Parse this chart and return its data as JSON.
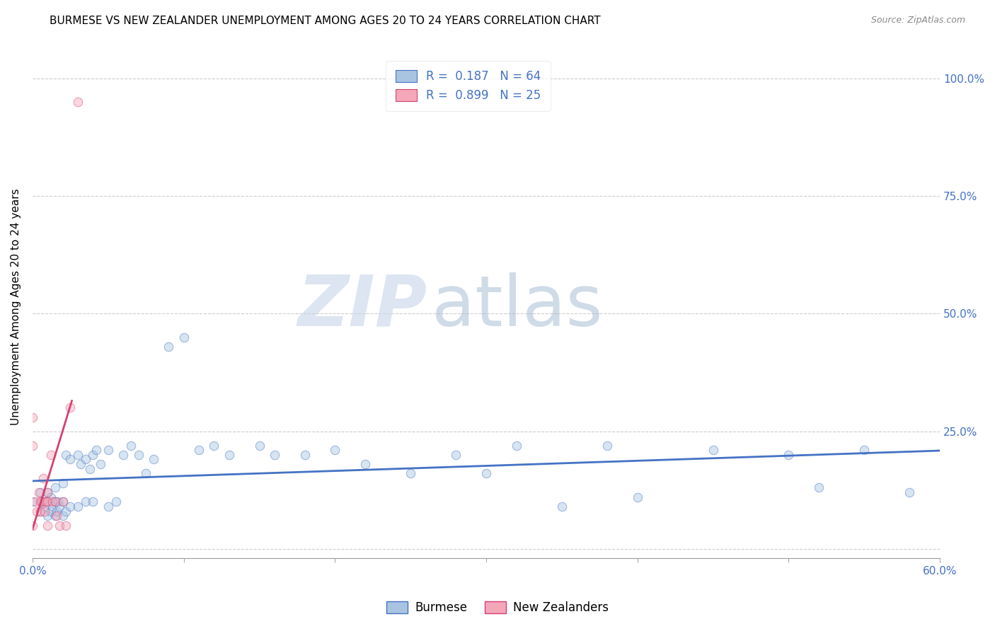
{
  "title": "BURMESE VS NEW ZEALANDER UNEMPLOYMENT AMONG AGES 20 TO 24 YEARS CORRELATION CHART",
  "source": "Source: ZipAtlas.com",
  "ylabel": "Unemployment Among Ages 20 to 24 years",
  "xlim": [
    0.0,
    0.6
  ],
  "ylim": [
    -0.02,
    1.05
  ],
  "xticks": [
    0.0,
    0.1,
    0.2,
    0.3,
    0.4,
    0.5,
    0.6
  ],
  "xticklabels": [
    "0.0%",
    "",
    "",
    "",
    "",
    "",
    "60.0%"
  ],
  "yticks": [
    0.0,
    0.25,
    0.5,
    0.75,
    1.0
  ],
  "yticklabels": [
    "",
    "25.0%",
    "50.0%",
    "75.0%",
    "100.0%"
  ],
  "blue_R": 0.187,
  "blue_N": 64,
  "pink_R": 0.899,
  "pink_N": 25,
  "blue_color": "#a8c4e0",
  "blue_line_color": "#4472c4",
  "pink_color": "#f4a7b9",
  "pink_line_color": "#d44070",
  "watermark_zip": "ZIP",
  "watermark_atlas": "atlas",
  "legend_burmese": "Burmese",
  "legend_nz": "New Zealanders",
  "blue_scatter_x": [
    0.0,
    0.005,
    0.005,
    0.007,
    0.008,
    0.01,
    0.01,
    0.01,
    0.012,
    0.012,
    0.013,
    0.015,
    0.015,
    0.015,
    0.016,
    0.017,
    0.018,
    0.02,
    0.02,
    0.02,
    0.022,
    0.022,
    0.025,
    0.025,
    0.03,
    0.03,
    0.032,
    0.035,
    0.035,
    0.038,
    0.04,
    0.04,
    0.042,
    0.045,
    0.05,
    0.05,
    0.055,
    0.06,
    0.065,
    0.07,
    0.075,
    0.08,
    0.09,
    0.1,
    0.11,
    0.12,
    0.13,
    0.15,
    0.16,
    0.18,
    0.2,
    0.22,
    0.25,
    0.28,
    0.3,
    0.32,
    0.35,
    0.38,
    0.4,
    0.45,
    0.5,
    0.52,
    0.55,
    0.58
  ],
  "blue_scatter_y": [
    0.1,
    0.08,
    0.12,
    0.1,
    0.09,
    0.07,
    0.1,
    0.12,
    0.08,
    0.11,
    0.09,
    0.07,
    0.1,
    0.13,
    0.08,
    0.1,
    0.09,
    0.07,
    0.1,
    0.14,
    0.08,
    0.2,
    0.09,
    0.19,
    0.09,
    0.2,
    0.18,
    0.1,
    0.19,
    0.17,
    0.1,
    0.2,
    0.21,
    0.18,
    0.09,
    0.21,
    0.1,
    0.2,
    0.22,
    0.2,
    0.16,
    0.19,
    0.43,
    0.45,
    0.21,
    0.22,
    0.2,
    0.22,
    0.2,
    0.2,
    0.21,
    0.18,
    0.16,
    0.2,
    0.16,
    0.22,
    0.09,
    0.22,
    0.11,
    0.21,
    0.2,
    0.13,
    0.21,
    0.12
  ],
  "pink_scatter_x": [
    0.0,
    0.0,
    0.0,
    0.002,
    0.003,
    0.004,
    0.005,
    0.005,
    0.006,
    0.007,
    0.008,
    0.008,
    0.009,
    0.01,
    0.01,
    0.01,
    0.012,
    0.013,
    0.015,
    0.016,
    0.018,
    0.02,
    0.022,
    0.025,
    0.03
  ],
  "pink_scatter_y": [
    0.28,
    0.22,
    0.05,
    0.1,
    0.08,
    0.12,
    0.08,
    0.1,
    0.1,
    0.15,
    0.08,
    0.1,
    0.1,
    0.05,
    0.1,
    0.12,
    0.2,
    0.1,
    0.1,
    0.07,
    0.05,
    0.1,
    0.05,
    0.3,
    0.95
  ],
  "pink_line_x_start": 0.0,
  "pink_line_x_end": 0.026,
  "title_fontsize": 11,
  "axis_label_fontsize": 11,
  "tick_fontsize": 11,
  "legend_fontsize": 12,
  "scatter_size": 80,
  "scatter_alpha": 0.45,
  "grid_color": "#cccccc",
  "grid_style": "--",
  "background_color": "#ffffff",
  "right_tick_color": "#4472c4"
}
